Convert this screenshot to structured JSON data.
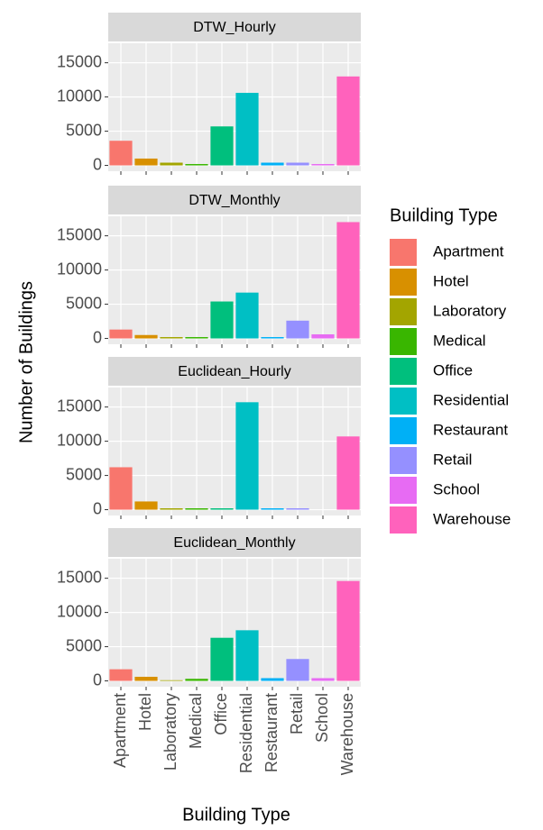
{
  "chart_data": {
    "type": "bar",
    "x_label": "Building Type",
    "y_label": "Number of Buildings",
    "legend_title": "Building Type",
    "categories": [
      "Apartment",
      "Hotel",
      "Laboratory",
      "Medical",
      "Office",
      "Residential",
      "Restaurant",
      "Retail",
      "School",
      "Warehouse"
    ],
    "colors": [
      "#F8766D",
      "#D89000",
      "#A3A500",
      "#39B600",
      "#00BF7D",
      "#00BFC4",
      "#00B0F6",
      "#9590FF",
      "#E76BF3",
      "#FF62BC"
    ],
    "ylim": [
      -850,
      17850
    ],
    "yticks": [
      0,
      5000,
      10000,
      15000
    ],
    "grid": true,
    "facets": [
      {
        "title": "DTW_Hourly",
        "values": [
          3600,
          1000,
          400,
          200,
          5700,
          10600,
          400,
          400,
          200,
          13000
        ]
      },
      {
        "title": "DTW_Monthly",
        "values": [
          1300,
          500,
          200,
          200,
          5400,
          6700,
          200,
          2600,
          600,
          17000
        ]
      },
      {
        "title": "Euclidean_Hourly",
        "values": [
          6200,
          1200,
          200,
          200,
          200,
          15700,
          200,
          200,
          0,
          10700
        ]
      },
      {
        "title": "Euclidean_Monthly",
        "values": [
          1700,
          600,
          100,
          300,
          6300,
          7400,
          400,
          3200,
          400,
          14600
        ]
      }
    ]
  }
}
